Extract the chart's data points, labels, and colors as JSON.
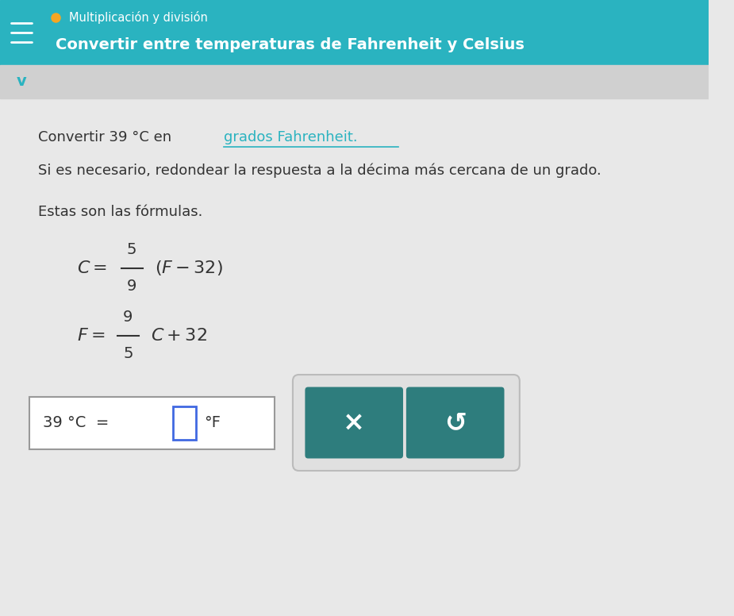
{
  "header_bg_color": "#2ab3c0",
  "header_text_color": "#ffffff",
  "header_subtitle": "Multiplicación y división",
  "header_title": "Convertir entre temperaturas de Fahrenheit y Celsius",
  "orange_dot_color": "#f5a623",
  "body_bg_color": "#e8e8e8",
  "body_text_color": "#333333",
  "line1_plain": "Convertir 39 °C en ",
  "line1_link": "grados Fahrenheit",
  "line1_end": ".",
  "line2": "Si es necesario, redondear la respuesta a la décima más cercana de un grado.",
  "line3": "Estas son las fórmulas.",
  "formula1_frac_num": "5",
  "formula1_frac_den": "9",
  "formula2_frac_num": "9",
  "formula2_frac_den": "5",
  "teal_button_color": "#2e7d7d",
  "button_x_symbol": "×",
  "button_undo_symbol": "↺",
  "link_color": "#2ab3c0",
  "chevron_color": "#2ab3c0",
  "hamburger_color": "#ffffff",
  "answer_text": "39 °C  = ",
  "answer_suffix": "°F"
}
